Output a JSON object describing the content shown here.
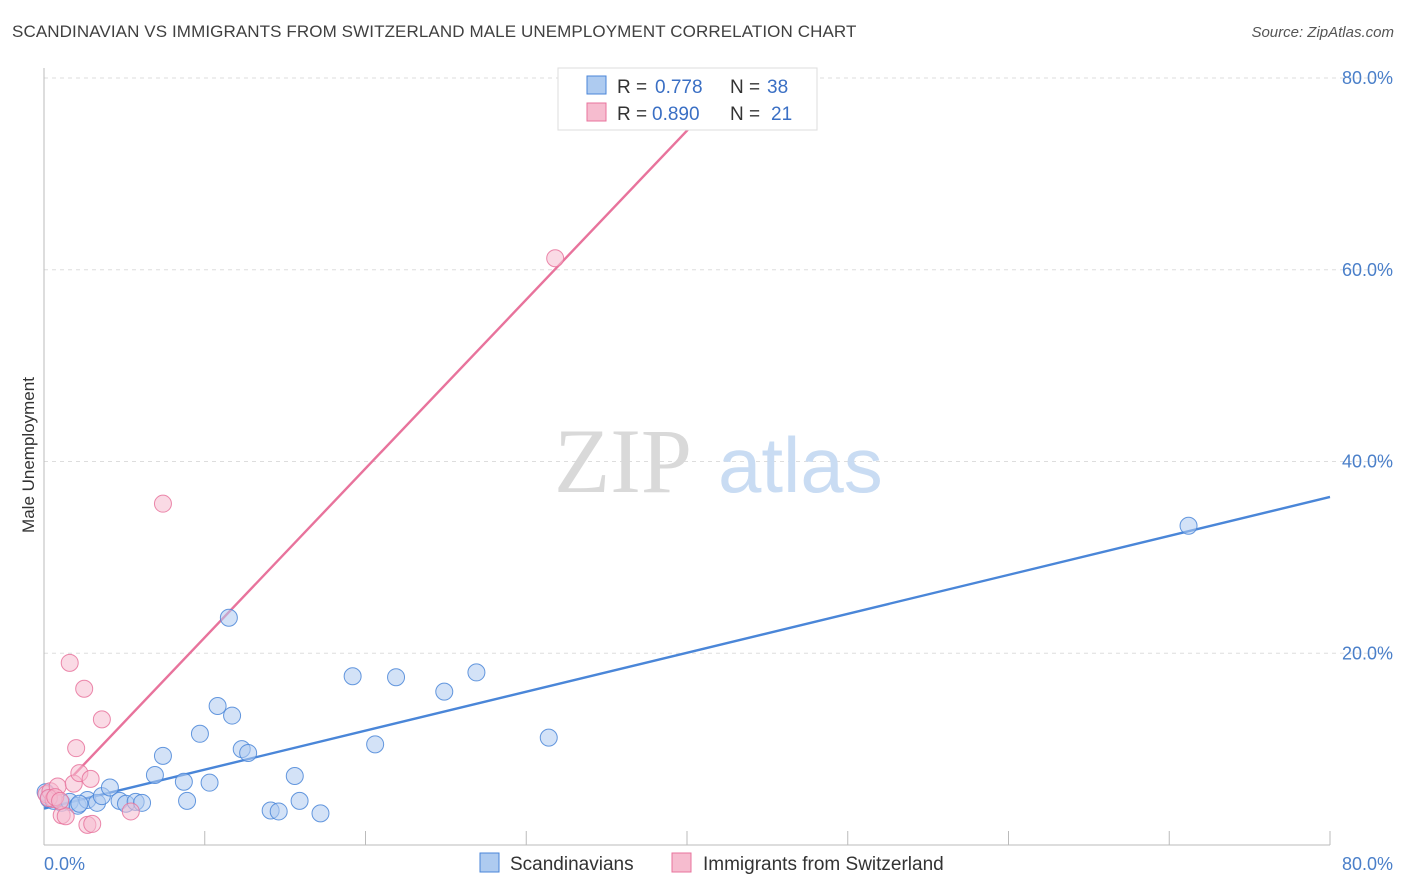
{
  "title": "SCANDINAVIAN VS IMMIGRANTS FROM SWITZERLAND MALE UNEMPLOYMENT CORRELATION CHART",
  "source": "Source: ZipAtlas.com",
  "watermark": {
    "zip": "ZIP",
    "atlas": "atlas"
  },
  "colors": {
    "blue": "#4a86d8",
    "blue_fill": "#aecbf0",
    "pink": "#e8739c",
    "pink_fill": "#f6bccf",
    "grid": "#dddddd"
  },
  "legend": {
    "r_label": "R =",
    "n_label": "N =",
    "rows": [
      {
        "r": "0.778",
        "n": "38"
      },
      {
        "r": "0.890",
        "n": "21"
      }
    ]
  },
  "chart_data": {
    "type": "scatter",
    "title": "SCANDINAVIAN VS IMMIGRANTS FROM SWITZERLAND MALE UNEMPLOYMENT CORRELATION CHART",
    "xlabel": "",
    "ylabel": "Male Unemployment",
    "xlim": [
      0,
      80
    ],
    "ylim": [
      0,
      80
    ],
    "x_tick_labels": [
      "0.0%",
      "80.0%"
    ],
    "y_tick_labels": [
      "20.0%",
      "40.0%",
      "60.0%",
      "80.0%"
    ],
    "y_ticks": [
      20,
      40,
      60,
      80
    ],
    "grid": true,
    "legend_position": "top-center",
    "series": [
      {
        "name": "Scandinavians",
        "color": "#4a86d8",
        "points": [
          [
            0.1,
            5.5
          ],
          [
            0.3,
            4.8
          ],
          [
            0.6,
            4.6
          ],
          [
            1.1,
            4.4
          ],
          [
            1.6,
            4.5
          ],
          [
            2.1,
            4.1
          ],
          [
            2.7,
            4.7
          ],
          [
            3.3,
            4.4
          ],
          [
            3.6,
            5.1
          ],
          [
            4.1,
            6.0
          ],
          [
            4.7,
            4.6
          ],
          [
            5.1,
            4.3
          ],
          [
            5.7,
            4.5
          ],
          [
            6.1,
            4.4
          ],
          [
            6.9,
            7.3
          ],
          [
            7.4,
            9.3
          ],
          [
            8.7,
            6.6
          ],
          [
            8.9,
            4.6
          ],
          [
            9.7,
            11.6
          ],
          [
            10.3,
            6.5
          ],
          [
            10.8,
            14.5
          ],
          [
            11.5,
            23.7
          ],
          [
            11.7,
            13.5
          ],
          [
            12.3,
            10.0
          ],
          [
            12.7,
            9.6
          ],
          [
            14.1,
            3.6
          ],
          [
            14.6,
            3.5
          ],
          [
            15.6,
            7.2
          ],
          [
            15.9,
            4.6
          ],
          [
            17.2,
            3.3
          ],
          [
            19.2,
            17.6
          ],
          [
            20.6,
            10.5
          ],
          [
            21.9,
            17.5
          ],
          [
            24.9,
            16.0
          ],
          [
            26.9,
            18.0
          ],
          [
            31.4,
            11.2
          ],
          [
            71.2,
            33.3
          ],
          [
            2.2,
            4.3
          ]
        ]
      },
      {
        "name": "Immigrants from Switzerland",
        "color": "#e8739c",
        "points": [
          [
            0.15,
            5.3
          ],
          [
            0.4,
            5.6
          ],
          [
            0.6,
            4.8
          ],
          [
            0.85,
            6.1
          ],
          [
            1.1,
            3.1
          ],
          [
            1.35,
            3.0
          ],
          [
            1.6,
            19.0
          ],
          [
            1.85,
            6.4
          ],
          [
            2.0,
            10.1
          ],
          [
            2.2,
            7.5
          ],
          [
            2.5,
            16.3
          ],
          [
            2.7,
            2.1
          ],
          [
            2.9,
            6.9
          ],
          [
            3.0,
            2.2
          ],
          [
            3.6,
            13.1
          ],
          [
            5.4,
            3.5
          ],
          [
            7.4,
            35.6
          ],
          [
            31.8,
            61.2
          ],
          [
            0.3,
            4.9
          ],
          [
            0.7,
            5.0
          ],
          [
            1.0,
            4.6
          ]
        ]
      }
    ],
    "trendlines": [
      {
        "series": "Scandinavians",
        "x": [
          0,
          80
        ],
        "y": [
          3.8,
          36.3
        ]
      },
      {
        "series": "Immigrants from Switzerland",
        "x": [
          1.8,
          41.3
        ],
        "y": [
          7.2,
          76.8
        ]
      }
    ]
  }
}
